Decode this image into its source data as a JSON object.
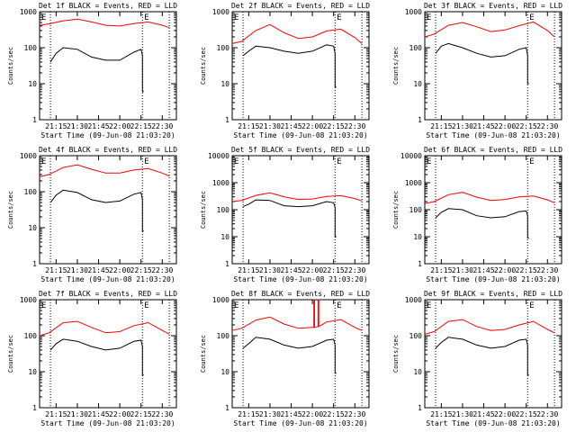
{
  "chart_data": [
    {
      "type": "line",
      "title": "Det 1f BLACK = Events, RED = LLD",
      "ylabel": "Counts/sec",
      "xlabel": "Start Time (09-Jun-08 21:03:20)",
      "markers": [
        "E",
        "E"
      ],
      "yscale": "log",
      "ylim": [
        1,
        1000
      ],
      "yticks": [
        "1",
        "10",
        "100",
        "1000"
      ],
      "xticks": [
        "21:15",
        "21:30",
        "21:45",
        "22:00",
        "22:15",
        "22:30"
      ],
      "xlim": [
        "21:03:20",
        "22:40:00"
      ],
      "vlines": [
        "21:11:00",
        "22:16:00",
        "22:35:00"
      ],
      "series": [
        {
          "name": "RED",
          "color": "#ff0000",
          "x": [
            "21:03:20",
            "21:10:00",
            "21:20:00",
            "21:30:00",
            "21:40:00",
            "21:50:00",
            "22:00:00",
            "22:10:00",
            "22:20:00",
            "22:30:00",
            "22:35:00"
          ],
          "values": [
            420,
            460,
            560,
            620,
            520,
            420,
            400,
            470,
            520,
            420,
            360
          ]
        },
        {
          "name": "BLACK",
          "color": "#000000",
          "x": [
            "21:11:00",
            "21:15:00",
            "21:20:00",
            "21:30:00",
            "21:40:00",
            "21:50:00",
            "22:00:00",
            "22:10:00",
            "22:15:00",
            "22:16:00",
            "22:16:00",
            "22:17:00"
          ],
          "values": [
            40,
            70,
            100,
            90,
            55,
            45,
            45,
            75,
            90,
            60,
            6,
            6
          ]
        }
      ]
    },
    {
      "type": "line",
      "title": "Det 2f BLACK = Events, RED = LLD",
      "ylabel": "Counts/sec",
      "xlabel": "Start Time (09-Jun-08 21:03:20)",
      "markers": [
        "E",
        "E"
      ],
      "yscale": "log",
      "ylim": [
        1,
        1000
      ],
      "yticks": [
        "1",
        "10",
        "100",
        "1000"
      ],
      "xticks": [
        "21:15",
        "21:30",
        "21:45",
        "22:00",
        "22:15",
        "22:30"
      ],
      "xlim": [
        "21:03:20",
        "22:40:00"
      ],
      "vlines": [
        "21:11:00",
        "22:16:00",
        "22:35:00"
      ],
      "series": [
        {
          "name": "RED",
          "color": "#ff0000",
          "x": [
            "21:03:20",
            "21:10:00",
            "21:20:00",
            "21:30:00",
            "21:40:00",
            "21:50:00",
            "22:00:00",
            "22:10:00",
            "22:20:00",
            "22:30:00",
            "22:35:00"
          ],
          "values": [
            130,
            150,
            300,
            440,
            260,
            180,
            200,
            290,
            330,
            190,
            130
          ]
        },
        {
          "name": "BLACK",
          "color": "#000000",
          "x": [
            "21:11:00",
            "21:15:00",
            "21:20:00",
            "21:30:00",
            "21:40:00",
            "21:50:00",
            "22:00:00",
            "22:10:00",
            "22:15:00",
            "22:16:00",
            "22:16:00",
            "22:17:00"
          ],
          "values": [
            60,
            80,
            110,
            100,
            80,
            70,
            80,
            120,
            110,
            70,
            8,
            8
          ]
        }
      ]
    },
    {
      "type": "line",
      "title": "Det 3f BLACK = Events, RED = LLD",
      "ylabel": "Counts/sec",
      "xlabel": "Start Time (09-Jun-08 21:03:20)",
      "markers": [
        "E",
        "E"
      ],
      "yscale": "log",
      "ylim": [
        1,
        1000
      ],
      "yticks": [
        "1",
        "10",
        "100",
        "1000"
      ],
      "xticks": [
        "21:15",
        "21:30",
        "21:45",
        "22:00",
        "22:15",
        "22:30"
      ],
      "xlim": [
        "21:03:20",
        "22:40:00"
      ],
      "vlines": [
        "21:11:00",
        "22:16:00",
        "22:35:00"
      ],
      "series": [
        {
          "name": "RED",
          "color": "#ff0000",
          "x": [
            "21:03:20",
            "21:10:00",
            "21:20:00",
            "21:30:00",
            "21:40:00",
            "21:50:00",
            "22:00:00",
            "22:10:00",
            "22:20:00",
            "22:30:00",
            "22:35:00"
          ],
          "values": [
            200,
            240,
            420,
            500,
            380,
            280,
            310,
            410,
            520,
            300,
            200
          ]
        },
        {
          "name": "BLACK",
          "color": "#000000",
          "x": [
            "21:11:00",
            "21:15:00",
            "21:20:00",
            "21:30:00",
            "21:40:00",
            "21:50:00",
            "22:00:00",
            "22:10:00",
            "22:15:00",
            "22:16:00",
            "22:16:00",
            "22:17:00"
          ],
          "values": [
            70,
            110,
            130,
            100,
            70,
            55,
            60,
            90,
            100,
            60,
            10,
            10
          ]
        }
      ]
    },
    {
      "type": "line",
      "title": "Det 4f BLACK = Events, RED = LLD",
      "ylabel": "Counts/sec",
      "xlabel": "Start Time (09-Jun-08 21:03:20)",
      "markers": [
        "E",
        "E"
      ],
      "yscale": "log",
      "ylim": [
        1,
        1000
      ],
      "yticks": [
        "1",
        "10",
        "100",
        "1000"
      ],
      "xticks": [
        "21:15",
        "21:30",
        "21:45",
        "22:00",
        "22:15",
        "22:30"
      ],
      "xlim": [
        "21:03:20",
        "22:40:00"
      ],
      "vlines": [
        "21:11:00",
        "22:16:00",
        "22:35:00"
      ],
      "series": [
        {
          "name": "RED",
          "color": "#ff0000",
          "x": [
            "21:03:20",
            "21:10:00",
            "21:20:00",
            "21:30:00",
            "21:40:00",
            "21:50:00",
            "22:00:00",
            "22:10:00",
            "22:20:00",
            "22:30:00",
            "22:35:00"
          ],
          "values": [
            260,
            300,
            470,
            560,
            420,
            330,
            330,
            400,
            440,
            330,
            270
          ]
        },
        {
          "name": "BLACK",
          "color": "#000000",
          "x": [
            "21:11:00",
            "21:15:00",
            "21:20:00",
            "21:30:00",
            "21:40:00",
            "21:50:00",
            "22:00:00",
            "22:10:00",
            "22:15:00",
            "22:16:00",
            "22:16:00",
            "22:17:00"
          ],
          "values": [
            50,
            80,
            110,
            95,
            60,
            50,
            55,
            85,
            95,
            60,
            8,
            8
          ]
        }
      ]
    },
    {
      "type": "line",
      "title": "Det 5f BLACK = Events, RED = LLD",
      "ylabel": "Counts/sec",
      "xlabel": "Start Time (09-Jun-08 21:03:20)",
      "markers": [
        "E",
        "E"
      ],
      "yscale": "log",
      "ylim": [
        1,
        10000
      ],
      "yticks": [
        "1",
        "10",
        "100",
        "1000",
        "10000"
      ],
      "xticks": [
        "21:15",
        "21:30",
        "21:45",
        "22:00",
        "22:15",
        "22:30"
      ],
      "xlim": [
        "21:03:20",
        "22:40:00"
      ],
      "vlines": [
        "21:11:00",
        "22:16:00",
        "22:35:00"
      ],
      "series": [
        {
          "name": "RED",
          "color": "#ff0000",
          "x": [
            "21:03:20",
            "21:10:00",
            "21:20:00",
            "21:30:00",
            "21:40:00",
            "21:50:00",
            "22:00:00",
            "22:10:00",
            "22:20:00",
            "22:30:00",
            "22:35:00"
          ],
          "values": [
            200,
            220,
            340,
            420,
            300,
            240,
            250,
            310,
            330,
            260,
            210
          ]
        },
        {
          "name": "BLACK",
          "color": "#000000",
          "x": [
            "21:11:00",
            "21:15:00",
            "21:20:00",
            "21:30:00",
            "21:40:00",
            "21:50:00",
            "22:00:00",
            "22:10:00",
            "22:15:00",
            "22:16:00",
            "22:16:00",
            "22:17:00"
          ],
          "values": [
            130,
            160,
            230,
            220,
            140,
            130,
            140,
            200,
            180,
            120,
            10,
            10
          ]
        }
      ]
    },
    {
      "type": "line",
      "title": "Det 6f BLACK = Events, RED = LLD",
      "ylabel": "Counts/sec",
      "xlabel": "Start Time (09-Jun-08 21:03:20)",
      "markers": [
        "E",
        "E"
      ],
      "yscale": "log",
      "ylim": [
        1,
        10000
      ],
      "yticks": [
        "1",
        "10",
        "100",
        "1000",
        "10000"
      ],
      "xticks": [
        "21:15",
        "21:30",
        "21:45",
        "22:00",
        "22:15",
        "22:30"
      ],
      "xlim": [
        "21:03:20",
        "22:40:00"
      ],
      "vlines": [
        "21:11:00",
        "22:16:00",
        "22:35:00"
      ],
      "series": [
        {
          "name": "RED",
          "color": "#ff0000",
          "x": [
            "21:03:20",
            "21:10:00",
            "21:20:00",
            "21:30:00",
            "21:40:00",
            "21:50:00",
            "22:00:00",
            "22:10:00",
            "22:20:00",
            "22:30:00",
            "22:35:00"
          ],
          "values": [
            170,
            200,
            360,
            440,
            290,
            220,
            240,
            300,
            320,
            230,
            180
          ]
        },
        {
          "name": "BLACK",
          "color": "#000000",
          "x": [
            "21:11:00",
            "21:15:00",
            "21:20:00",
            "21:30:00",
            "21:40:00",
            "21:50:00",
            "22:00:00",
            "22:10:00",
            "22:15:00",
            "22:16:00",
            "22:16:00",
            "22:17:00"
          ],
          "values": [
            50,
            80,
            110,
            100,
            60,
            50,
            55,
            85,
            90,
            60,
            9,
            9
          ]
        }
      ]
    },
    {
      "type": "line",
      "title": "Det 7f BLACK = Events, RED = LLD",
      "ylabel": "Counts/sec",
      "xlabel": "Start Time (09-Jun-08 21:03:20)",
      "markers": [
        "E",
        "E"
      ],
      "yscale": "log",
      "ylim": [
        1,
        1000
      ],
      "yticks": [
        "1",
        "10",
        "100",
        "1000"
      ],
      "xticks": [
        "21:15",
        "21:30",
        "21:45",
        "22:00",
        "22:15",
        "22:30"
      ],
      "xlim": [
        "21:03:20",
        "22:40:00"
      ],
      "vlines": [
        "21:11:00",
        "22:16:00",
        "22:35:00"
      ],
      "series": [
        {
          "name": "RED",
          "color": "#ff0000",
          "x": [
            "21:03:20",
            "21:10:00",
            "21:20:00",
            "21:30:00",
            "21:40:00",
            "21:50:00",
            "22:00:00",
            "22:10:00",
            "22:20:00",
            "22:30:00",
            "22:35:00"
          ],
          "values": [
            100,
            120,
            230,
            250,
            170,
            120,
            130,
            190,
            230,
            140,
            110
          ]
        },
        {
          "name": "BLACK",
          "color": "#000000",
          "x": [
            "21:11:00",
            "21:15:00",
            "21:20:00",
            "21:30:00",
            "21:40:00",
            "21:50:00",
            "22:00:00",
            "22:10:00",
            "22:15:00",
            "22:16:00",
            "22:16:00",
            "22:17:00"
          ],
          "values": [
            40,
            60,
            80,
            70,
            50,
            40,
            45,
            70,
            75,
            50,
            8,
            8
          ]
        }
      ]
    },
    {
      "type": "line",
      "title": "Det 8f BLACK = Events, RED = LLD",
      "ylabel": "Counts/sec",
      "xlabel": "Start Time (09-Jun-08 21:03:20)",
      "markers": [
        "E",
        "E"
      ],
      "yscale": "log",
      "ylim": [
        1,
        1000
      ],
      "yticks": [
        "1",
        "10",
        "100",
        "1000"
      ],
      "xticks": [
        "21:15",
        "21:30",
        "21:45",
        "22:00",
        "22:15",
        "22:30"
      ],
      "xlim": [
        "21:03:20",
        "22:40:00"
      ],
      "vlines": [
        "21:11:00",
        "22:16:00",
        "22:35:00"
      ],
      "series": [
        {
          "name": "RED",
          "color": "#ff0000",
          "x": [
            "21:03:20",
            "21:10:00",
            "21:20:00",
            "21:30:00",
            "21:40:00",
            "21:50:00",
            "22:00:00",
            "22:01:00",
            "22:01:00",
            "22:01:30",
            "22:01:30",
            "22:04:00",
            "22:04:00",
            "22:04:30",
            "22:04:30",
            "22:10:00",
            "22:20:00",
            "22:30:00",
            "22:35:00"
          ],
          "values": [
            140,
            160,
            270,
            330,
            210,
            160,
            170,
            170,
            1000,
            1000,
            170,
            180,
            1000,
            1000,
            180,
            240,
            280,
            170,
            140
          ]
        },
        {
          "name": "BLACK",
          "color": "#000000",
          "x": [
            "21:11:00",
            "21:15:00",
            "21:20:00",
            "21:30:00",
            "21:40:00",
            "21:50:00",
            "22:00:00",
            "22:10:00",
            "22:15:00",
            "22:16:00",
            "22:16:00",
            "22:17:00"
          ],
          "values": [
            45,
            60,
            90,
            80,
            55,
            45,
            50,
            75,
            80,
            55,
            9,
            9
          ]
        }
      ]
    },
    {
      "type": "line",
      "title": "Det 9f BLACK = Events, RED = LLD",
      "ylabel": "Counts/sec",
      "xlabel": "Start Time (09-Jun-08 21:03:20)",
      "markers": [
        "E",
        "E"
      ],
      "yscale": "log",
      "ylim": [
        1,
        1000
      ],
      "yticks": [
        "1",
        "10",
        "100",
        "1000"
      ],
      "xticks": [
        "21:15",
        "21:30",
        "21:45",
        "22:00",
        "22:15",
        "22:30"
      ],
      "xlim": [
        "21:03:20",
        "22:40:00"
      ],
      "vlines": [
        "21:11:00",
        "22:16:00",
        "22:35:00"
      ],
      "series": [
        {
          "name": "RED",
          "color": "#ff0000",
          "x": [
            "21:03:20",
            "21:10:00",
            "21:20:00",
            "21:30:00",
            "21:40:00",
            "21:50:00",
            "22:00:00",
            "22:10:00",
            "22:20:00",
            "22:30:00",
            "22:35:00"
          ],
          "values": [
            110,
            130,
            250,
            280,
            180,
            140,
            150,
            200,
            250,
            150,
            120
          ]
        },
        {
          "name": "BLACK",
          "color": "#000000",
          "x": [
            "21:11:00",
            "21:15:00",
            "21:20:00",
            "21:30:00",
            "21:40:00",
            "21:50:00",
            "22:00:00",
            "22:10:00",
            "22:15:00",
            "22:16:00",
            "22:16:00",
            "22:17:00"
          ],
          "values": [
            45,
            65,
            90,
            80,
            55,
            45,
            50,
            75,
            80,
            55,
            8,
            8
          ]
        }
      ]
    }
  ]
}
